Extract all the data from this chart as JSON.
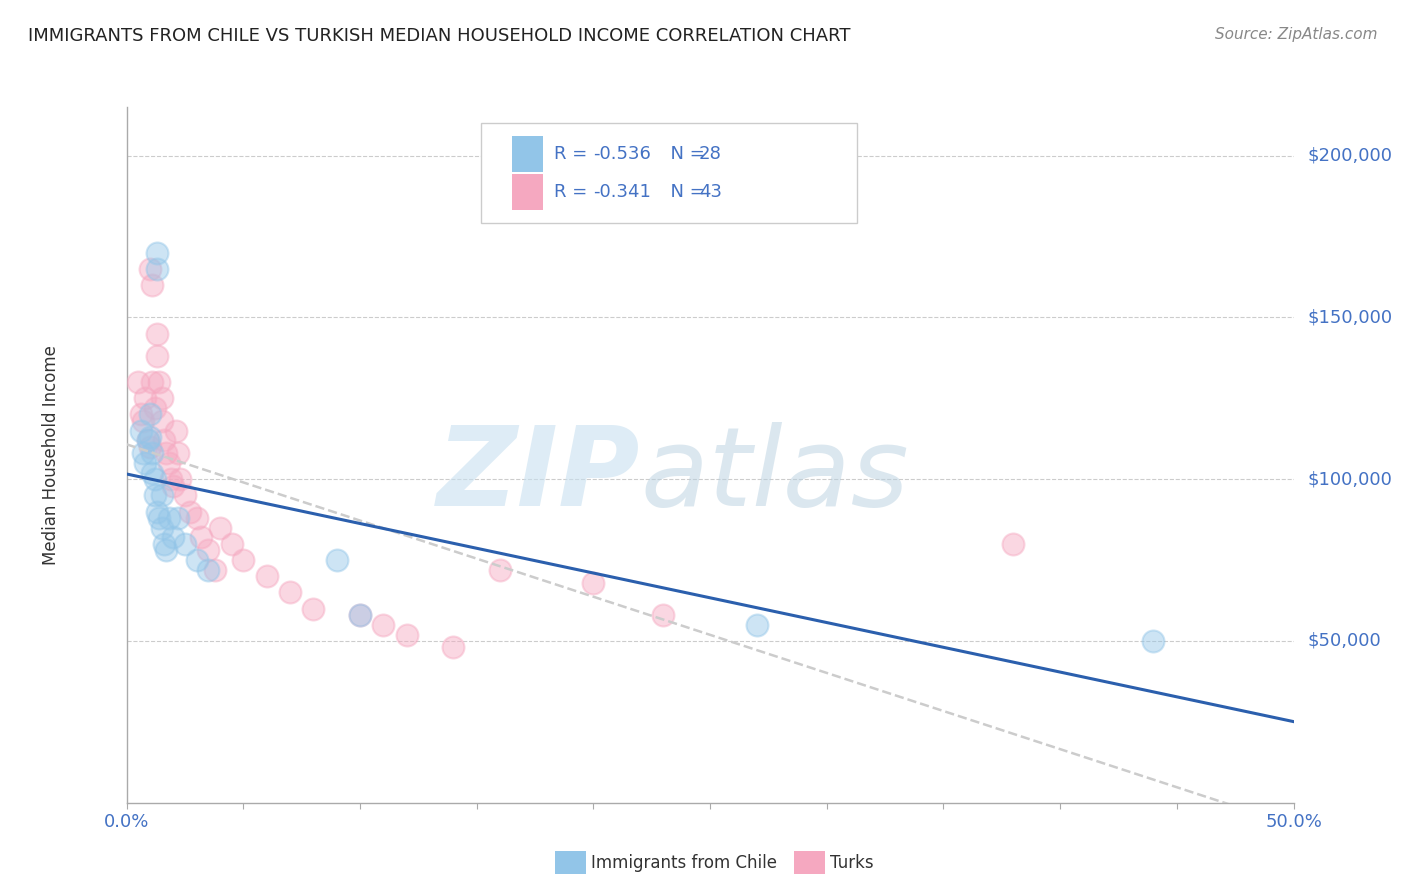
{
  "title": "IMMIGRANTS FROM CHILE VS TURKISH MEDIAN HOUSEHOLD INCOME CORRELATION CHART",
  "source": "Source: ZipAtlas.com",
  "ylabel": "Median Household Income",
  "xlim": [
    0.0,
    0.5
  ],
  "ylim": [
    0,
    215000
  ],
  "xticks": [
    0.0,
    0.05,
    0.1,
    0.15,
    0.2,
    0.25,
    0.3,
    0.35,
    0.4,
    0.45,
    0.5
  ],
  "ytick_labels": [
    "$200,000",
    "$150,000",
    "$100,000",
    "$50,000"
  ],
  "ytick_vals": [
    200000,
    150000,
    100000,
    50000
  ],
  "chile_color": "#92C5E8",
  "turk_color": "#F5A8C0",
  "chile_line_color": "#2B5FAD",
  "turk_line_color": "#cccccc",
  "turk_line_color2": "#E06080",
  "chile_R": -0.536,
  "chile_N": 28,
  "turk_R": -0.341,
  "turk_N": 43,
  "legend_label_chile": "Immigrants from Chile",
  "legend_label_turk": "Turks",
  "watermark_zip_color": "#c8e0f0",
  "watermark_atlas_color": "#b8d0e0",
  "background_color": "#ffffff",
  "grid_color": "#cccccc",
  "axis_color": "#aaaaaa",
  "title_color": "#222222",
  "source_color": "#888888",
  "blue_label_color": "#4472C4",
  "chile_scatter_x": [
    0.013,
    0.013,
    0.006,
    0.007,
    0.008,
    0.009,
    0.01,
    0.01,
    0.011,
    0.011,
    0.012,
    0.012,
    0.013,
    0.014,
    0.015,
    0.015,
    0.016,
    0.017,
    0.018,
    0.02,
    0.022,
    0.025,
    0.03,
    0.035,
    0.09,
    0.1,
    0.27,
    0.44
  ],
  "chile_scatter_y": [
    170000,
    165000,
    115000,
    108000,
    105000,
    112000,
    120000,
    113000,
    108000,
    102000,
    95000,
    100000,
    90000,
    88000,
    95000,
    85000,
    80000,
    78000,
    88000,
    82000,
    88000,
    80000,
    75000,
    72000,
    75000,
    58000,
    55000,
    50000
  ],
  "turk_scatter_x": [
    0.005,
    0.006,
    0.007,
    0.008,
    0.009,
    0.01,
    0.01,
    0.011,
    0.011,
    0.012,
    0.013,
    0.013,
    0.014,
    0.015,
    0.015,
    0.016,
    0.017,
    0.018,
    0.019,
    0.02,
    0.021,
    0.022,
    0.023,
    0.025,
    0.027,
    0.03,
    0.032,
    0.035,
    0.038,
    0.04,
    0.045,
    0.05,
    0.06,
    0.07,
    0.08,
    0.1,
    0.11,
    0.12,
    0.14,
    0.16,
    0.2,
    0.23,
    0.38
  ],
  "turk_scatter_y": [
    130000,
    120000,
    118000,
    125000,
    112000,
    110000,
    165000,
    160000,
    130000,
    122000,
    145000,
    138000,
    130000,
    125000,
    118000,
    112000,
    108000,
    105000,
    100000,
    98000,
    115000,
    108000,
    100000,
    95000,
    90000,
    88000,
    82000,
    78000,
    72000,
    85000,
    80000,
    75000,
    70000,
    65000,
    60000,
    58000,
    55000,
    52000,
    48000,
    72000,
    68000,
    58000,
    80000
  ]
}
